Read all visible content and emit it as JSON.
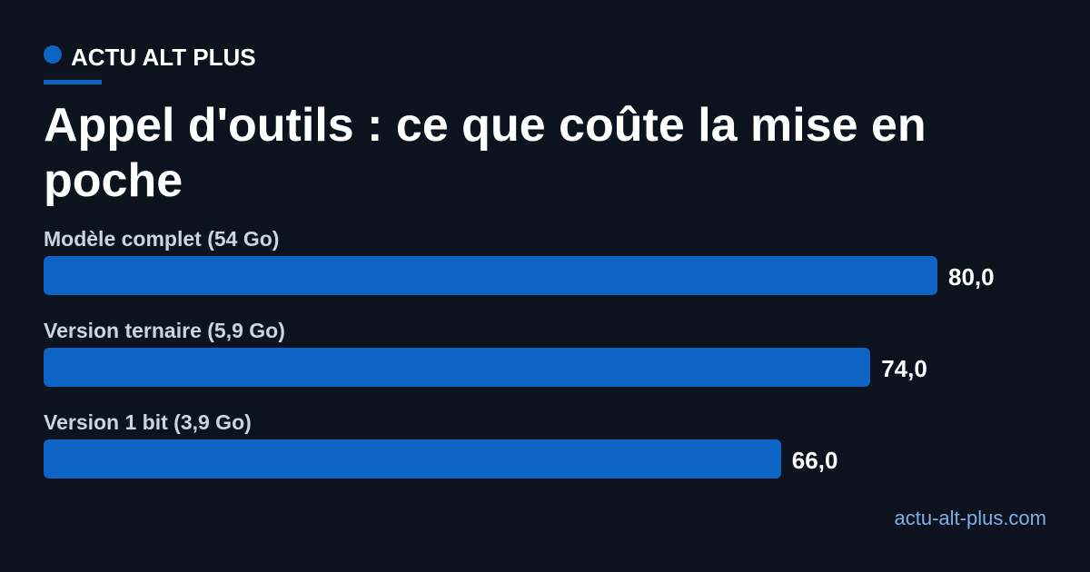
{
  "brand": "ACTU ALT PLUS",
  "source": "actu-alt-plus.com",
  "chart_data": {
    "type": "bar",
    "title": "Appel d'outils : ce que coûte la mise en poche",
    "categories": [
      "Modèle complet (54 Go)",
      "Version ternaire (5,9 Go)",
      "Version 1 bit (3,9 Go)"
    ],
    "values": [
      80,
      74,
      66
    ],
    "value_labels": [
      "80,0",
      "74,0",
      "66,0"
    ],
    "color": "#0d64c4"
  }
}
